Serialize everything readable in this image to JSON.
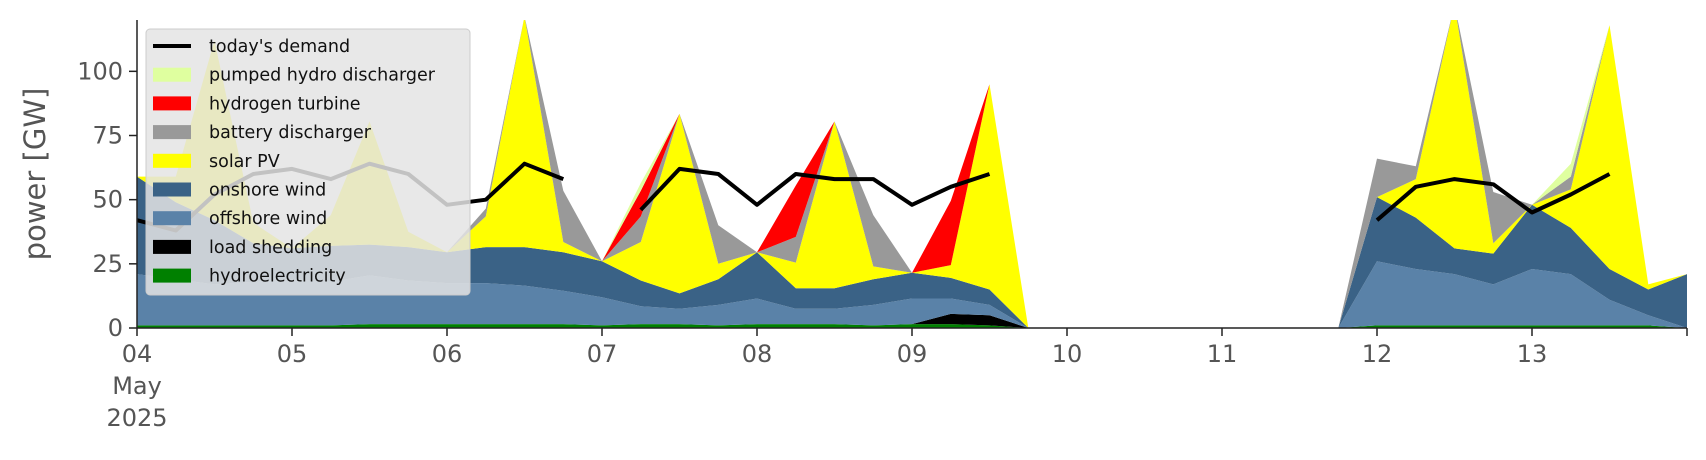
{
  "chart_data": {
    "type": "area",
    "ylabel": "power [GW]",
    "xlabel": "",
    "ylim": [
      0,
      120
    ],
    "xlim": [
      "2025-05-04 00:00",
      "2025-05-14 00:00"
    ],
    "x_tick_labels": [
      "04\nMay\n2025",
      "05",
      "06",
      "07",
      "08",
      "09",
      "10",
      "11",
      "12",
      "13"
    ],
    "y_ticks": [
      0,
      25,
      50,
      75,
      100
    ],
    "grid": false,
    "legend_position": "upper-left",
    "x": [
      "2025-05-04 00:00",
      "2025-05-04 06:00",
      "2025-05-04 12:00",
      "2025-05-04 18:00",
      "2025-05-05 00:00",
      "2025-05-05 06:00",
      "2025-05-05 12:00",
      "2025-05-05 18:00",
      "2025-05-06 00:00",
      "2025-05-06 06:00",
      "2025-05-06 12:00",
      "2025-05-06 18:00",
      "2025-05-07 00:00",
      "2025-05-07 06:00",
      "2025-05-07 12:00",
      "2025-05-07 18:00",
      "2025-05-08 00:00",
      "2025-05-08 06:00",
      "2025-05-08 12:00",
      "2025-05-08 18:00",
      "2025-05-09 00:00",
      "2025-05-09 06:00",
      "2025-05-09 12:00",
      "2025-05-09 18:00",
      "2025-05-10 00:00",
      "2025-05-10 06:00",
      "2025-05-10 12:00",
      "2025-05-10 18:00",
      "2025-05-11 00:00",
      "2025-05-11 06:00",
      "2025-05-11 12:00",
      "2025-05-11 18:00",
      "2025-05-12 00:00",
      "2025-05-12 06:00",
      "2025-05-12 12:00",
      "2025-05-12 18:00",
      "2025-05-13 00:00",
      "2025-05-13 06:00",
      "2025-05-13 12:00",
      "2025-05-13 18:00",
      "2025-05-14 00:00"
    ],
    "series": [
      {
        "name": "hydroelectricity",
        "color": "#008000",
        "values": [
          1,
          1,
          1,
          1,
          1,
          1,
          1.5,
          1.5,
          1.5,
          1.5,
          1.5,
          1.5,
          1,
          1.5,
          1.5,
          1,
          1.5,
          1.5,
          1.5,
          1,
          1.5,
          1.5,
          1,
          0,
          0,
          0,
          0,
          0,
          0,
          0,
          0,
          0,
          1,
          1,
          1,
          1,
          1,
          1,
          1,
          1,
          0
        ]
      },
      {
        "name": "load shedding",
        "color": "#000000",
        "values": [
          0,
          0,
          0,
          0,
          0,
          0,
          0,
          0,
          0,
          0,
          0,
          0,
          0,
          0,
          0,
          0,
          0,
          0,
          0,
          0,
          0,
          4,
          4,
          0,
          0,
          0,
          0,
          0,
          0,
          0,
          0,
          0,
          0,
          0,
          0,
          0,
          0,
          0,
          0,
          0,
          0
        ]
      },
      {
        "name": "offshore wind",
        "color": "#5a82a8",
        "values": [
          20,
          18,
          16,
          17,
          18,
          17,
          19,
          17,
          16,
          16,
          15,
          13,
          11,
          7,
          6,
          8,
          10,
          6,
          6,
          8,
          10,
          6,
          4,
          0,
          0,
          0,
          0,
          0,
          0,
          0,
          0,
          0,
          25,
          22,
          20,
          16,
          22,
          20,
          10,
          4,
          0
        ]
      },
      {
        "name": "onshore wind",
        "color": "#3a6286",
        "values": [
          38,
          30,
          25,
          15,
          12,
          14,
          12,
          13,
          12,
          14,
          15,
          15,
          14,
          10,
          6,
          10,
          18,
          8,
          8,
          10,
          10,
          8,
          6,
          0,
          0,
          0,
          0,
          0,
          0,
          0,
          0,
          0,
          25,
          20,
          10,
          12,
          25,
          18,
          12,
          10,
          21
        ]
      },
      {
        "name": "solar PV",
        "color": "#ffff00",
        "values": [
          0,
          10,
          70,
          8,
          0,
          12,
          48,
          6,
          0,
          12,
          90,
          4,
          0,
          15,
          70,
          6,
          0,
          10,
          65,
          5,
          0,
          5,
          80,
          0,
          0,
          0,
          0,
          0,
          0,
          0,
          0,
          0,
          0,
          15,
          95,
          4,
          0,
          15,
          95,
          2,
          0
        ]
      },
      {
        "name": "battery discharger",
        "color": "#999999",
        "values": [
          0,
          0,
          0,
          0,
          0,
          0,
          0,
          0,
          0,
          3,
          0,
          20,
          0,
          10,
          0,
          15,
          0,
          10,
          0,
          20,
          0,
          0,
          0,
          0,
          0,
          0,
          0,
          0,
          0,
          0,
          0,
          0,
          15,
          5,
          0,
          20,
          0,
          5,
          0,
          0,
          0
        ]
      },
      {
        "name": "hydrogen turbine",
        "color": "#ff0000",
        "values": [
          0,
          0,
          0,
          0,
          0,
          0,
          0,
          0,
          0,
          0,
          0,
          0,
          0,
          10,
          0,
          0,
          0,
          20,
          0,
          0,
          0,
          25,
          0,
          0,
          0,
          0,
          0,
          0,
          0,
          0,
          0,
          0,
          0,
          0,
          0,
          0,
          0,
          0,
          0,
          0,
          0
        ]
      },
      {
        "name": "pumped hydro discharger",
        "color": "#dfff9f",
        "values": [
          0,
          0,
          0,
          0,
          0,
          0,
          0,
          0,
          0,
          0,
          0,
          0,
          0,
          3,
          0,
          0,
          0,
          0,
          0,
          0,
          0,
          0,
          0,
          0,
          0,
          0,
          0,
          0,
          0,
          0,
          0,
          0,
          0,
          0,
          0,
          0,
          0,
          5,
          0,
          0,
          0
        ]
      }
    ],
    "demand": {
      "name": "today's demand",
      "color": "#000000",
      "values": [
        42,
        38,
        52,
        60,
        62,
        58,
        64,
        60,
        48,
        50,
        64,
        58,
        null,
        46,
        62,
        60,
        48,
        60,
        58,
        58,
        48,
        55,
        60,
        null,
        null,
        null,
        null,
        null,
        null,
        null,
        null,
        null,
        42,
        55,
        58,
        56,
        45,
        52,
        60,
        null,
        null
      ]
    },
    "legend": [
      {
        "label": "today's demand",
        "color": "#000000",
        "kind": "line"
      },
      {
        "label": "pumped hydro discharger",
        "color": "#dfff9f",
        "kind": "patch"
      },
      {
        "label": "hydrogen turbine",
        "color": "#ff0000",
        "kind": "patch"
      },
      {
        "label": "battery discharger",
        "color": "#999999",
        "kind": "patch"
      },
      {
        "label": "solar PV",
        "color": "#ffff00",
        "kind": "patch"
      },
      {
        "label": "onshore wind",
        "color": "#3a6286",
        "kind": "patch"
      },
      {
        "label": "offshore wind",
        "color": "#5a82a8",
        "kind": "patch"
      },
      {
        "label": "load shedding",
        "color": "#000000",
        "kind": "patch"
      },
      {
        "label": "hydroelectricity",
        "color": "#008000",
        "kind": "patch"
      }
    ]
  }
}
